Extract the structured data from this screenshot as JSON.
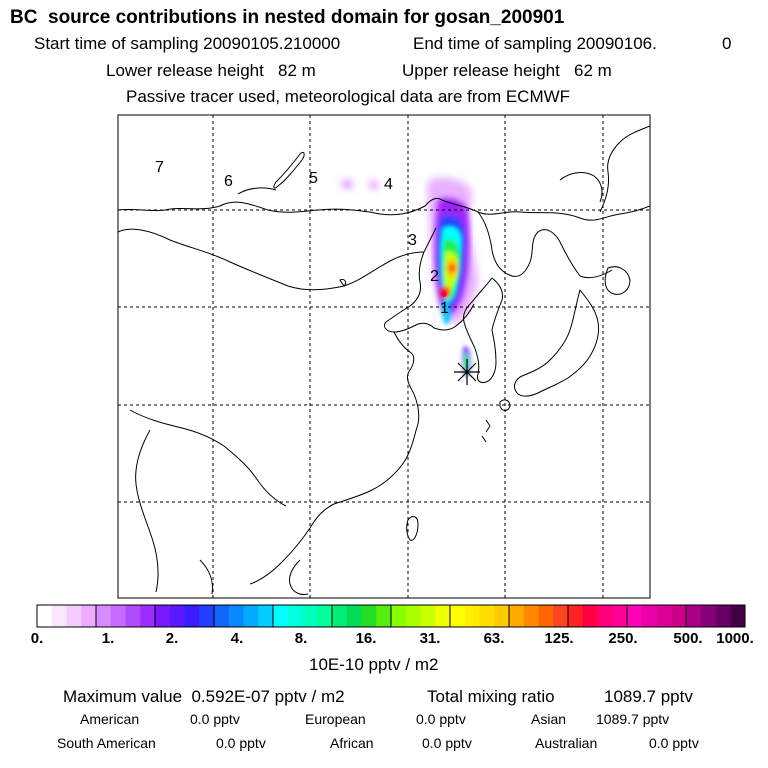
{
  "header": {
    "title": "BC  source contributions in nested domain for gosan_200901",
    "start_time_label": "Start time of sampling 20090105.210000",
    "end_time_label": "End time of sampling 20090106.",
    "end_time_suffix": "0",
    "lower_release": "Lower release height   82 m",
    "upper_release": "Upper release height   62 m",
    "tracer_note": "Passive tracer used, meteorological data are from ECMWF"
  },
  "map": {
    "day_markers": [
      "1",
      "2",
      "3",
      "4",
      "5",
      "6",
      "7"
    ],
    "receptor_icon": "asterisk-receptor-icon"
  },
  "colorbar": {
    "tick_labels": [
      "0.",
      "1.",
      "2.",
      "4.",
      "8.",
      "16.",
      "31.",
      "63.",
      "125.",
      "250.",
      "500.",
      "1000."
    ],
    "units": "10E-10 pptv / m2",
    "colors": [
      "#ffffff",
      "#fbe6ff",
      "#f6ccff",
      "#eeaaff",
      "#d98cff",
      "#c46cff",
      "#b04cff",
      "#9c2cff",
      "#7a18ff",
      "#5a18ff",
      "#3a1cff",
      "#2240ff",
      "#1464ff",
      "#0a88ff",
      "#00aaff",
      "#00ccff",
      "#00ffff",
      "#00ffdd",
      "#00ffbb",
      "#00ff99",
      "#00ee77",
      "#00dd55",
      "#22dd22",
      "#55ee11",
      "#88ff00",
      "#aaff00",
      "#ccff00",
      "#eeff00",
      "#ffff00",
      "#ffee00",
      "#ffdd00",
      "#ffcc00",
      "#ffaa00",
      "#ff8800",
      "#ff6600",
      "#ff4422",
      "#ff2222",
      "#ff0044",
      "#ff0077",
      "#ff0099",
      "#ff00bb",
      "#ee00aa",
      "#dd0099",
      "#cc0088",
      "#aa0088",
      "#880077",
      "#660066",
      "#440044"
    ]
  },
  "summary": {
    "maximum_label": "Maximum value  0.592E-07 pptv / m2",
    "total_label": "Total mixing ratio",
    "total_value": "1089.7 pptv",
    "american_label": "American",
    "american_value": "0.0 pptv",
    "european_label": "European",
    "european_value": "0.0 pptv",
    "asian_label": "Asian",
    "asian_value": "1089.7 pptv",
    "south_american_label": "South American",
    "south_american_value": "0.0 pptv",
    "african_label": "African",
    "african_value": "0.0 pptv",
    "australian_label": "Australian",
    "australian_value": "0.0 pptv"
  }
}
